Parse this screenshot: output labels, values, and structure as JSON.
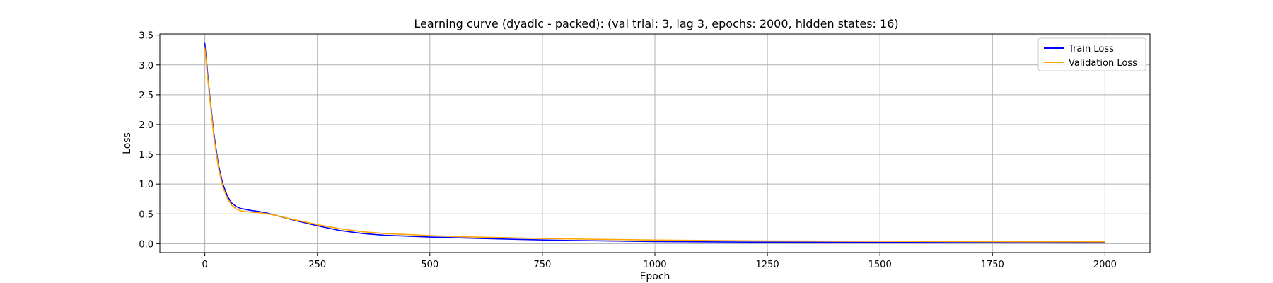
{
  "chart_data": {
    "type": "line",
    "title": "Learning curve (dyadic - packed): (val trial: 3, lag 3, epochs: 2000, hidden states: 16)",
    "xlabel": "Epoch",
    "ylabel": "Loss",
    "xlim": [
      -100,
      2100
    ],
    "ylim": [
      -0.15,
      3.52
    ],
    "x_ticks": [
      0,
      250,
      500,
      750,
      1000,
      1250,
      1500,
      1750,
      2000
    ],
    "x_tick_labels": [
      "0",
      "250",
      "500",
      "750",
      "1000",
      "1250",
      "1500",
      "1750",
      "2000"
    ],
    "y_ticks": [
      0.0,
      0.5,
      1.0,
      1.5,
      2.0,
      2.5,
      3.0,
      3.5
    ],
    "y_tick_labels": [
      "0.0",
      "0.5",
      "1.0",
      "1.5",
      "2.0",
      "2.5",
      "3.0",
      "3.5"
    ],
    "grid": true,
    "legend_position": "top-right",
    "series": [
      {
        "name": "Train Loss",
        "color": "#0000ff",
        "x": [
          0,
          5,
          10,
          20,
          30,
          40,
          50,
          60,
          70,
          80,
          100,
          120,
          140,
          160,
          200,
          250,
          300,
          350,
          400,
          500,
          600,
          700,
          800,
          1000,
          1250,
          1500,
          1750,
          2000
        ],
        "y": [
          3.36,
          2.95,
          2.55,
          1.85,
          1.33,
          1.0,
          0.8,
          0.68,
          0.62,
          0.59,
          0.56,
          0.54,
          0.51,
          0.47,
          0.39,
          0.3,
          0.22,
          0.17,
          0.14,
          0.11,
          0.09,
          0.07,
          0.055,
          0.035,
          0.025,
          0.02,
          0.015,
          0.012
        ]
      },
      {
        "name": "Validation Loss",
        "color": "#ffa500",
        "x": [
          0,
          5,
          10,
          20,
          30,
          40,
          50,
          60,
          70,
          80,
          100,
          120,
          140,
          160,
          200,
          250,
          300,
          350,
          400,
          500,
          600,
          700,
          800,
          1000,
          1250,
          1500,
          1750,
          2000
        ],
        "y": [
          3.28,
          2.88,
          2.5,
          1.8,
          1.28,
          0.95,
          0.76,
          0.64,
          0.58,
          0.55,
          0.53,
          0.52,
          0.5,
          0.47,
          0.4,
          0.32,
          0.25,
          0.2,
          0.17,
          0.135,
          0.11,
          0.095,
          0.08,
          0.06,
          0.045,
          0.04,
          0.035,
          0.03
        ]
      }
    ]
  }
}
